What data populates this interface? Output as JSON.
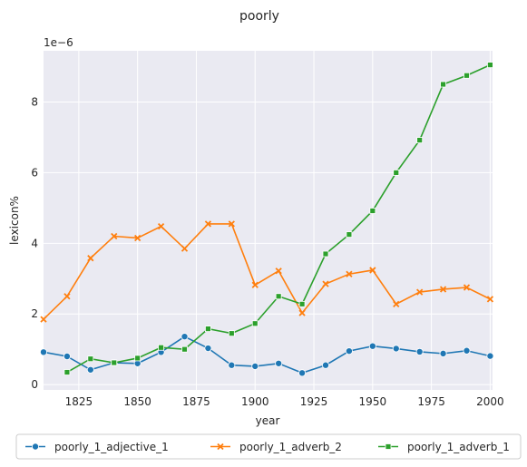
{
  "chart_data": {
    "type": "line",
    "title": "poorly",
    "xlabel": "year",
    "ylabel": "lexicon%",
    "y_offset_label": "1e−6",
    "xlim": [
      1810,
      2001
    ],
    "ylim": [
      -0.15,
      9.45
    ],
    "x_ticks": [
      1825,
      1850,
      1875,
      1900,
      1925,
      1950,
      1975,
      2000
    ],
    "y_ticks": [
      0,
      2,
      4,
      6,
      8
    ],
    "grid": true,
    "legend_position": "bottom",
    "series": [
      {
        "name": "poorly_1_adjective_1",
        "color": "#1f77b4",
        "marker": "circle",
        "x": [
          1810,
          1820,
          1830,
          1840,
          1850,
          1860,
          1870,
          1880,
          1890,
          1900,
          1910,
          1920,
          1930,
          1940,
          1950,
          1960,
          1970,
          1980,
          1990,
          2000
        ],
        "values": [
          0.92,
          0.8,
          0.42,
          0.62,
          0.6,
          0.92,
          1.36,
          1.03,
          0.55,
          0.52,
          0.6,
          0.33,
          0.55,
          0.95,
          1.09,
          1.02,
          0.93,
          0.88,
          0.96,
          0.81
        ]
      },
      {
        "name": "poorly_1_adverb_2",
        "color": "#ff7f0e",
        "marker": "x",
        "x": [
          1810,
          1820,
          1830,
          1840,
          1850,
          1860,
          1870,
          1880,
          1890,
          1900,
          1910,
          1920,
          1930,
          1940,
          1950,
          1960,
          1970,
          1980,
          1990,
          2000
        ],
        "values": [
          1.85,
          2.5,
          3.58,
          4.2,
          4.15,
          4.48,
          3.85,
          4.55,
          4.55,
          2.82,
          3.22,
          2.03,
          2.85,
          3.13,
          3.24,
          2.28,
          2.62,
          2.7,
          2.75,
          2.42
        ]
      },
      {
        "name": "poorly_1_adverb_1",
        "color": "#2ca02c",
        "marker": "square",
        "x": [
          1820,
          1830,
          1840,
          1850,
          1860,
          1870,
          1880,
          1890,
          1900,
          1910,
          1920,
          1930,
          1940,
          1950,
          1960,
          1970,
          1980,
          1990,
          2000
        ],
        "values": [
          0.35,
          0.73,
          0.62,
          0.75,
          1.05,
          1.0,
          1.58,
          1.45,
          1.73,
          2.5,
          2.28,
          3.7,
          4.25,
          4.92,
          6.0,
          6.92,
          8.5,
          8.75,
          9.05
        ]
      }
    ]
  }
}
